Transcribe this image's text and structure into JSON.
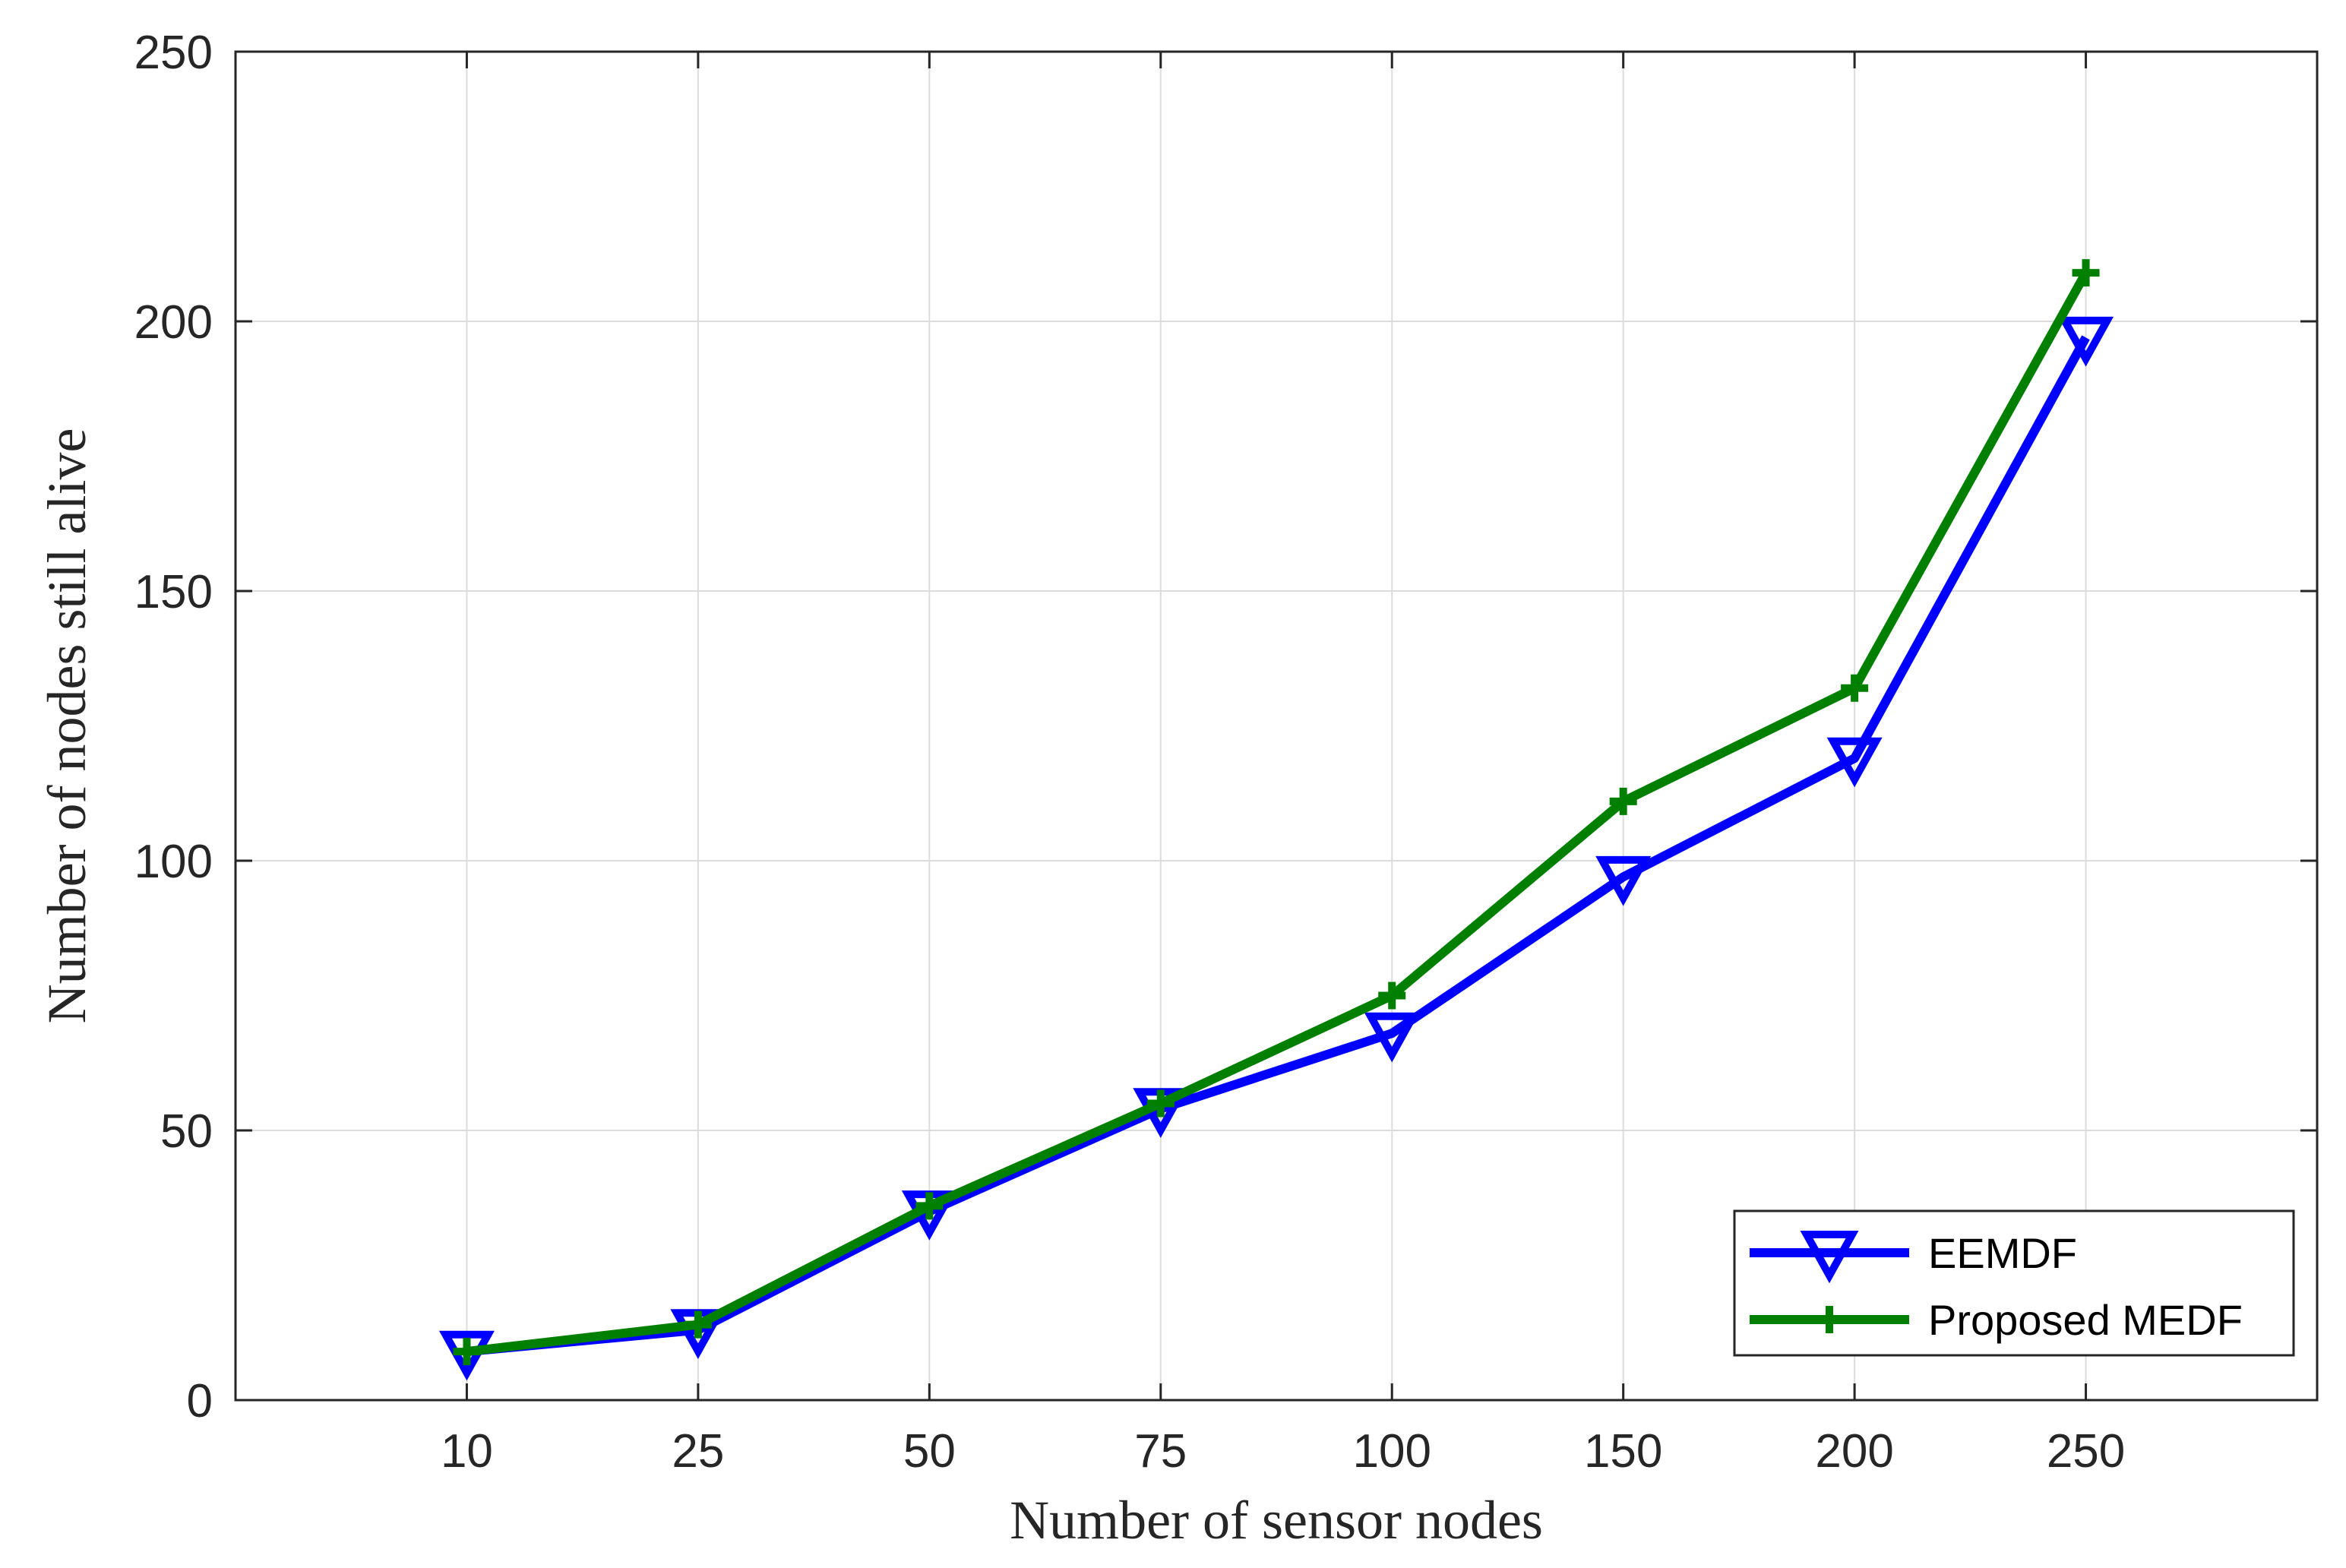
{
  "chart_data": {
    "type": "line",
    "categories": [
      "10",
      "25",
      "50",
      "75",
      "100",
      "150",
      "200",
      "250"
    ],
    "xlabel": "Number of sensor nodes",
    "ylabel": "Number of nodes still alive",
    "ylim": [
      0,
      250
    ],
    "yticks": [
      "0",
      "50",
      "100",
      "150",
      "200",
      "250"
    ],
    "grid": true,
    "legend_position": "bottom-right",
    "series": [
      {
        "name": "EEMDF",
        "color": "#0000ff",
        "marker": "triangle-down",
        "values": [
          9,
          13,
          35,
          54,
          68,
          97,
          119,
          197
        ]
      },
      {
        "name": "Proposed MEDF",
        "color": "#007f00",
        "marker": "plus",
        "values": [
          9,
          14,
          36,
          55,
          75,
          111,
          132,
          209
        ]
      }
    ]
  }
}
